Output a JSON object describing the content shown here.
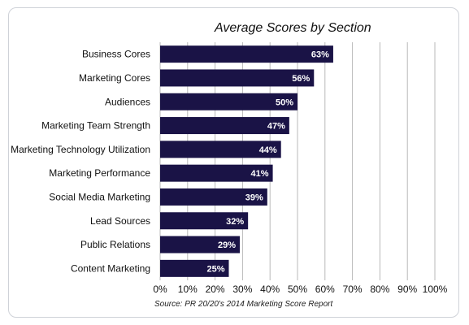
{
  "chart_data": {
    "type": "bar",
    "orientation": "horizontal",
    "title": "Average Scores by Section",
    "source": "Source: PR 20/20's 2014 Marketing Score Report",
    "categories": [
      "Business Cores",
      "Marketing Cores",
      "Audiences",
      "Marketing Team Strength",
      "Marketing Technology Utilization",
      "Marketing Performance",
      "Social Media Marketing",
      "Lead Sources",
      "Public Relations",
      "Content Marketing"
    ],
    "values": [
      63,
      56,
      50,
      47,
      44,
      41,
      39,
      32,
      29,
      25
    ],
    "value_labels": [
      "63%",
      "56%",
      "50%",
      "47%",
      "44%",
      "41%",
      "39%",
      "32%",
      "29%",
      "25%"
    ],
    "xlim": [
      0,
      100
    ],
    "x_ticks": [
      "0%",
      "10%",
      "20%",
      "30%",
      "40%",
      "50%",
      "60%",
      "70%",
      "80%",
      "90%",
      "100%"
    ],
    "grid": "vertical",
    "colors": {
      "bar": "#1a1346",
      "grid": "#b9b9b9",
      "value_label": "#ffffff"
    }
  }
}
